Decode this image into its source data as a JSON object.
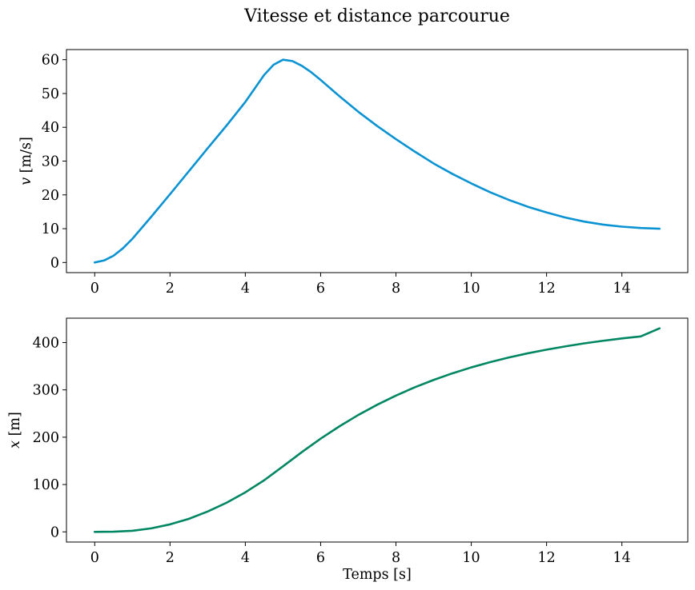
{
  "figure": {
    "suptitle": "Vitesse et distance parcourue"
  },
  "chart_data": [
    {
      "type": "line",
      "xlabel": "",
      "ylabel_var": "v",
      "ylabel_unit": " [m/s]",
      "xlim": [
        -0.75,
        15.75
      ],
      "ylim": [
        -3,
        63
      ],
      "xticks": [
        0,
        2,
        4,
        6,
        8,
        10,
        12,
        14
      ],
      "yticks": [
        0,
        10,
        20,
        30,
        40,
        50,
        60
      ],
      "grid": false,
      "series": [
        {
          "color": "#0a93d2",
          "x": [
            0,
            0.25,
            0.5,
            0.75,
            1.0,
            1.5,
            2.0,
            2.5,
            3.0,
            3.5,
            4.0,
            4.25,
            4.5,
            4.75,
            5.0,
            5.25,
            5.5,
            5.75,
            6.0,
            6.5,
            7.0,
            7.5,
            8.0,
            8.5,
            9.0,
            9.5,
            10.0,
            10.5,
            11.0,
            11.5,
            12.0,
            12.5,
            13.0,
            13.5,
            14.0,
            14.5,
            15.0
          ],
          "y": [
            0,
            0.6,
            2.0,
            4.2,
            7.0,
            13.5,
            20.2,
            27.0,
            33.8,
            40.5,
            47.5,
            51.5,
            55.5,
            58.5,
            60.0,
            59.6,
            58.2,
            56.3,
            54.0,
            49.2,
            44.6,
            40.4,
            36.5,
            32.8,
            29.3,
            26.2,
            23.4,
            20.8,
            18.5,
            16.5,
            14.8,
            13.3,
            12.1,
            11.2,
            10.6,
            10.2,
            10.0
          ]
        }
      ]
    },
    {
      "type": "line",
      "xlabel": "Temps [s]",
      "ylabel_var": "x",
      "ylabel_unit": " [m]",
      "xlim": [
        -0.75,
        15.75
      ],
      "ylim": [
        -21.5,
        451.5
      ],
      "xticks": [
        0,
        2,
        4,
        6,
        8,
        10,
        12,
        14
      ],
      "yticks": [
        0,
        100,
        200,
        300,
        400
      ],
      "grid": false,
      "series": [
        {
          "color": "#008762",
          "x": [
            0,
            0.5,
            1.0,
            1.5,
            2.0,
            2.5,
            3.0,
            3.5,
            4.0,
            4.5,
            5.0,
            5.5,
            6.0,
            6.5,
            7.0,
            7.5,
            8.0,
            8.5,
            9.0,
            9.5,
            10.0,
            10.5,
            11.0,
            11.5,
            12.0,
            12.5,
            13.0,
            13.5,
            14.0,
            14.5,
            15.0
          ],
          "y": [
            0,
            0.3,
            2.3,
            7.4,
            15.8,
            27.5,
            43.0,
            61.5,
            83.5,
            109.0,
            138.5,
            168.5,
            197.0,
            223.0,
            247.0,
            268.5,
            288.0,
            305.5,
            321.0,
            335.0,
            347.5,
            358.5,
            368.5,
            377.3,
            385.0,
            392.0,
            398.3,
            403.8,
            408.8,
            413.0,
            430.0
          ]
        }
      ]
    }
  ]
}
